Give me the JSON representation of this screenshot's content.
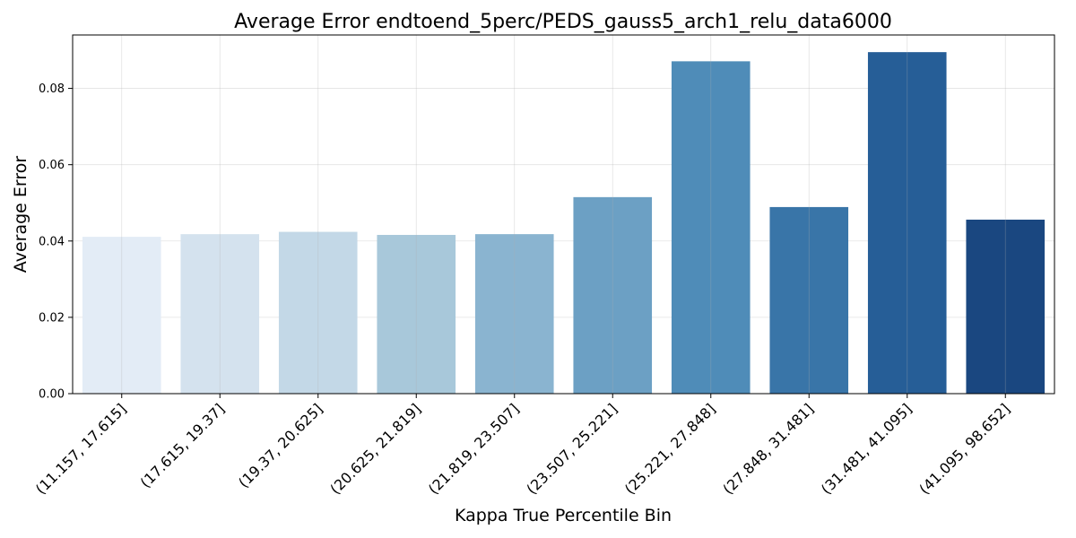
{
  "chart_data": {
    "type": "bar",
    "title": "Average Error endtoend_5perc/PEDS_gauss5_arch1_relu_data6000",
    "xlabel": "Kappa True Percentile Bin",
    "ylabel": "Average Error",
    "categories": [
      "(11.157, 17.615]",
      "(17.615, 19.37]",
      "(19.37, 20.625]",
      "(20.625, 21.819]",
      "(21.819, 23.507]",
      "(23.507, 25.221]",
      "(25.221, 27.848]",
      "(27.848, 31.481]",
      "(31.481, 41.095]",
      "(41.095, 98.652]"
    ],
    "values": [
      0.0411,
      0.0418,
      0.0424,
      0.0416,
      0.0418,
      0.0515,
      0.0871,
      0.0489,
      0.0895,
      0.0456
    ],
    "colors": [
      "#e3ecf6",
      "#d4e2ee",
      "#c3d8e7",
      "#a8c8da",
      "#8ab4d0",
      "#6ca0c4",
      "#4f8cb8",
      "#3975a8",
      "#265e97",
      "#1a4780"
    ],
    "ylim": [
      0,
      0.094
    ],
    "yticks": [
      0.0,
      0.02,
      0.04,
      0.06,
      0.08
    ],
    "ytick_labels": [
      "0.00",
      "0.02",
      "0.04",
      "0.06",
      "0.08"
    ],
    "grid": true,
    "xtick_rotation_deg": 45
  }
}
